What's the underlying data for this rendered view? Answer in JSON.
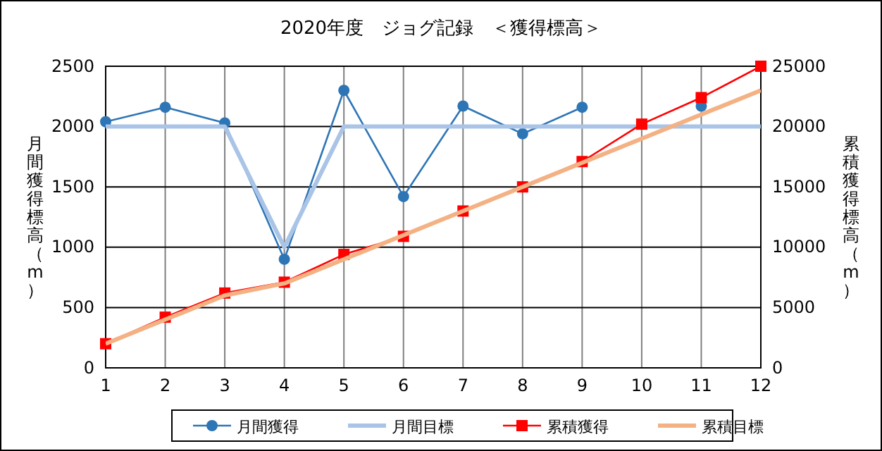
{
  "chart_data": {
    "type": "line",
    "title": "2020年度　ジョグ記録　＜獲得標高＞",
    "ylabel": "月間獲得標高（m）",
    "y2label": "累積獲得標高（m）",
    "x": [
      1,
      2,
      3,
      4,
      5,
      6,
      7,
      8,
      9,
      10,
      11,
      12
    ],
    "xlim": [
      1,
      12
    ],
    "xticks": [
      1,
      2,
      3,
      4,
      5,
      6,
      7,
      8,
      9,
      10,
      11,
      12
    ],
    "ylim": [
      0,
      2500
    ],
    "yticks": [
      0,
      500,
      1000,
      1500,
      2000,
      2500
    ],
    "y2lim": [
      0,
      25000
    ],
    "y2ticks": [
      0,
      5000,
      10000,
      15000,
      20000,
      25000
    ],
    "grid": true,
    "legend": "bottom",
    "series": [
      {
        "name": "月間獲得",
        "color": "#2e75b6",
        "marker": "circle",
        "values": [
          2040,
          2160,
          2030,
          900,
          2300,
          1420,
          2170,
          1940,
          2160,
          null,
          2170,
          null
        ]
      },
      {
        "name": "月間目標",
        "color": "#a9c4e6",
        "marker": "none",
        "values": [
          2000,
          2000,
          2000,
          1000,
          2000,
          2000,
          2000,
          2000,
          2000,
          2000,
          2000,
          2000
        ]
      },
      {
        "name": "累積獲得",
        "color": "#ff0000",
        "marker": "square",
        "axis": "y2",
        "values": [
          2000,
          4200,
          6200,
          7100,
          9400,
          10900,
          13000,
          15000,
          17100,
          20200,
          22400,
          25000
        ]
      },
      {
        "name": "累積目標",
        "color": "#f4b183",
        "marker": "none",
        "axis": "y2",
        "values": [
          2000,
          4000,
          6000,
          7000,
          9000,
          11000,
          13000,
          15000,
          17000,
          19000,
          21000,
          23000
        ]
      }
    ]
  }
}
